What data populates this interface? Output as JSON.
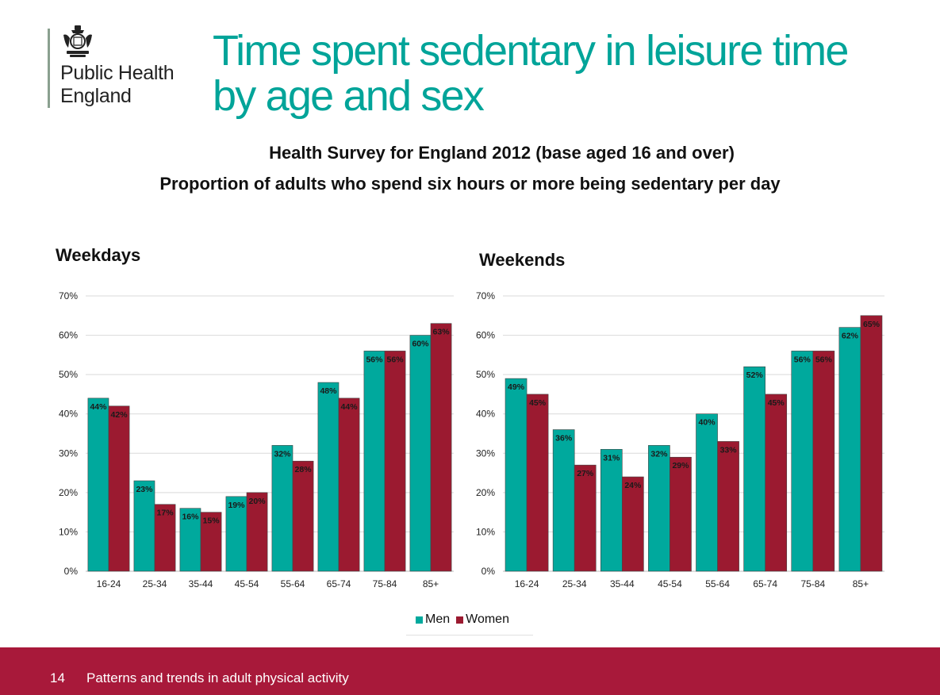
{
  "logo": {
    "line1": "Public Health",
    "line2": "England"
  },
  "title": {
    "line1": "Time spent sedentary in leisure time",
    "line2": "by age and sex"
  },
  "subtitle": {
    "line1": "Health Survey for England 2012 (base aged 16 and over)",
    "line2": "Proportion of adults who spend six hours or more being sedentary per day"
  },
  "legend": {
    "men": "Men",
    "women": "Women"
  },
  "footer": {
    "page_number": "14",
    "text": "Patterns and trends in adult physical activity"
  },
  "colors": {
    "men": "#00a99d",
    "women": "#9b1a30",
    "title": "#00a499",
    "footer": "#a8193a"
  },
  "chart_data": [
    {
      "type": "bar",
      "title": "Weekdays",
      "categories": [
        "16-24",
        "25-34",
        "35-44",
        "45-54",
        "55-64",
        "65-74",
        "75-84",
        "85+"
      ],
      "series": [
        {
          "name": "Men",
          "values": [
            44,
            23,
            16,
            19,
            32,
            48,
            56,
            60
          ]
        },
        {
          "name": "Women",
          "values": [
            42,
            17,
            15,
            20,
            28,
            44,
            56,
            63
          ]
        }
      ],
      "yticks": [
        "0%",
        "10%",
        "20%",
        "30%",
        "40%",
        "50%",
        "60%",
        "70%"
      ],
      "ylim": [
        0,
        70
      ],
      "grid": true,
      "legend": "bottom"
    },
    {
      "type": "bar",
      "title": "Weekends",
      "categories": [
        "16-24",
        "25-34",
        "35-44",
        "45-54",
        "55-64",
        "65-74",
        "75-84",
        "85+"
      ],
      "series": [
        {
          "name": "Men",
          "values": [
            49,
            36,
            31,
            32,
            40,
            52,
            56,
            62
          ]
        },
        {
          "name": "Women",
          "values": [
            45,
            27,
            24,
            29,
            33,
            45,
            56,
            65
          ]
        }
      ],
      "yticks": [
        "0%",
        "10%",
        "20%",
        "30%",
        "40%",
        "50%",
        "60%",
        "70%"
      ],
      "ylim": [
        0,
        70
      ],
      "grid": true,
      "legend": "bottom"
    }
  ]
}
